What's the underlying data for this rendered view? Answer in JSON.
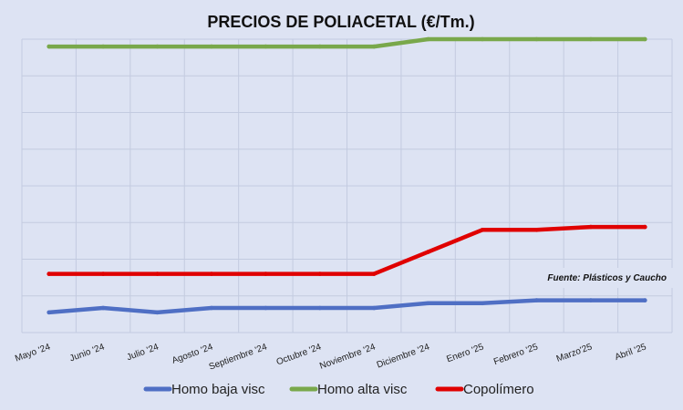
{
  "chart_data": {
    "type": "line",
    "title": "PRECIOS DE POLIACETAL (€/Tm.)",
    "categories": [
      "Mayo '24",
      "Junio '24",
      "Julio '24",
      "Agosto '24",
      "Septiembre '24",
      "Octubre '24",
      "Noviembre '24",
      "Diciembre '24",
      "Enero '25",
      "Febrero '25",
      "Marzo'25",
      "Abril '25"
    ],
    "ylim": [
      0,
      8
    ],
    "grid": true,
    "legend_position": "bottom",
    "series": [
      {
        "name": "Homo baja visc",
        "color": "#4f6fc4",
        "values": [
          0.55,
          0.67,
          0.55,
          0.67,
          0.67,
          0.67,
          0.67,
          0.8,
          0.8,
          0.88,
          0.88,
          0.88
        ]
      },
      {
        "name": "Homo alta visc",
        "color": "#79a84b",
        "values": [
          7.8,
          7.8,
          7.8,
          7.8,
          7.8,
          7.8,
          7.8,
          8.0,
          8.0,
          8.0,
          8.0,
          8.0
        ]
      },
      {
        "name": "Copolímero",
        "color": "#e00000",
        "values": [
          1.6,
          1.6,
          1.6,
          1.6,
          1.6,
          1.6,
          1.6,
          2.2,
          2.8,
          2.8,
          2.88,
          2.88
        ]
      }
    ],
    "source": "Fuente: Plásticos y Caucho"
  }
}
